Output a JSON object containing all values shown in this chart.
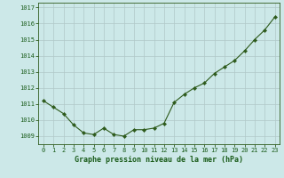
{
  "x": [
    0,
    1,
    2,
    3,
    4,
    5,
    6,
    7,
    8,
    9,
    10,
    11,
    12,
    13,
    14,
    15,
    16,
    17,
    18,
    19,
    20,
    21,
    22,
    23
  ],
  "y": [
    1011.2,
    1010.8,
    1010.4,
    1009.7,
    1009.2,
    1009.1,
    1009.5,
    1009.1,
    1009.0,
    1009.4,
    1009.4,
    1009.5,
    1009.8,
    1011.1,
    1011.6,
    1012.0,
    1012.3,
    1012.9,
    1013.3,
    1013.7,
    1014.3,
    1015.0,
    1015.6,
    1016.4
  ],
  "title": "Graphe pression niveau de la mer (hPa)",
  "xlim": [
    -0.5,
    23.5
  ],
  "ylim": [
    1008.5,
    1017.3
  ],
  "yticks": [
    1009,
    1010,
    1011,
    1012,
    1013,
    1014,
    1015,
    1016,
    1017
  ],
  "xticks": [
    0,
    1,
    2,
    3,
    4,
    5,
    6,
    7,
    8,
    9,
    10,
    11,
    12,
    13,
    14,
    15,
    16,
    17,
    18,
    19,
    20,
    21,
    22,
    23
  ],
  "line_color": "#2d5a1b",
  "marker_color": "#2d5a1b",
  "bg_color": "#cce8e8",
  "grid_color": "#b0c8c8",
  "title_color": "#1a5c1a",
  "tick_label_color": "#1a5c1a"
}
